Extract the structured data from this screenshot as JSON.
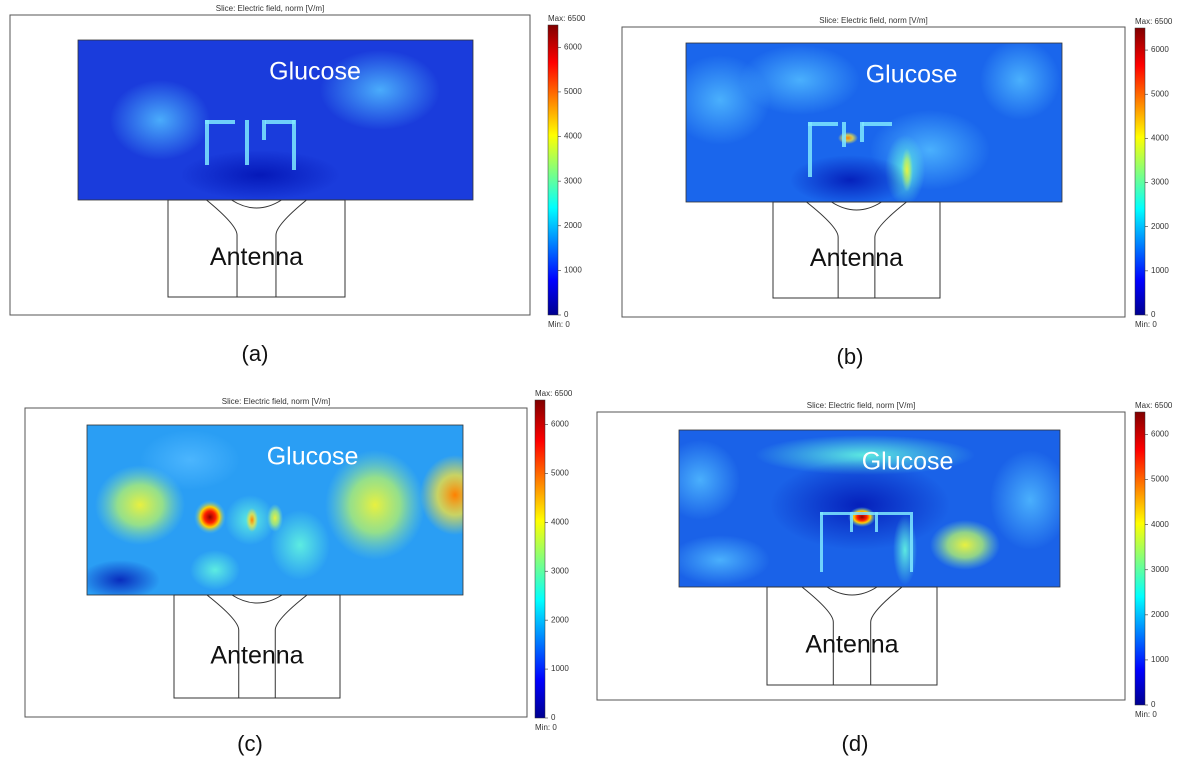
{
  "panels": [
    {
      "title": "Slice: Electric field, norm [V/m]",
      "max_label": "Max: 6500",
      "min_label": "Min: 0",
      "colorbar_lim": [
        0,
        6500
      ],
      "colorbar_ticks": [
        0,
        1000,
        2000,
        3000,
        4000,
        5000,
        6000
      ],
      "region_labels": [
        "Glucose",
        "Antenna"
      ],
      "caption": "(a)"
    },
    {
      "title": "Slice: Electric field, norm [V/m]",
      "max_label": "Max: 6500",
      "min_label": "Min: 0",
      "colorbar_lim": [
        0,
        6500
      ],
      "colorbar_ticks": [
        0,
        1000,
        2000,
        3000,
        4000,
        5000,
        6000
      ],
      "region_labels": [
        "Glucose",
        "Antenna"
      ],
      "caption": "(b)"
    },
    {
      "title": "Slice: Electric field, norm [V/m]",
      "max_label": "Max: 6500",
      "min_label": "Min: 0",
      "colorbar_lim": [
        0,
        6500
      ],
      "colorbar_ticks": [
        0,
        1000,
        2000,
        3000,
        4000,
        5000,
        6000
      ],
      "region_labels": [
        "Glucose",
        "Antenna"
      ],
      "caption": "(c)"
    },
    {
      "title": "Slice: Electric field, norm [V/m]",
      "max_label": "Max: 6500",
      "min_label": "Min: 0",
      "colorbar_lim": [
        0,
        6500
      ],
      "colorbar_ticks": [
        0,
        1000,
        2000,
        3000,
        4000,
        5000,
        6000
      ],
      "region_labels": [
        "Glucose",
        "Antenna"
      ],
      "caption": "(d)"
    }
  ]
}
